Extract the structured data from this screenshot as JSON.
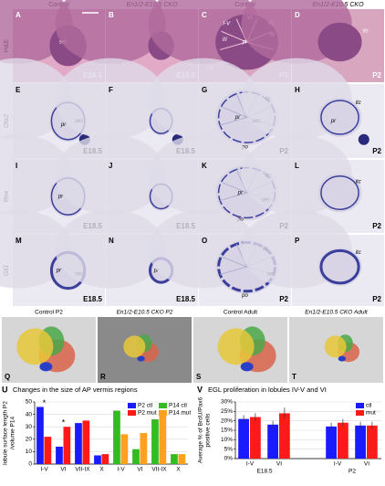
{
  "columns": [
    "Control",
    "En1/2-E10.5 CKO",
    "Control",
    "En1/2-E10.5 CKO"
  ],
  "row_labels": [
    "H&E",
    "Otx2",
    "Rnx",
    "Gli1"
  ],
  "panels": [
    {
      "letter": "A",
      "labels": [
        "sec",
        "E18.5"
      ]
    },
    {
      "letter": "B",
      "labels": [
        "E18.5"
      ]
    },
    {
      "letter": "C",
      "labels": [
        "I-V",
        "VI",
        "VII",
        "III",
        "pr",
        "itc",
        "I-II",
        "P2"
      ]
    },
    {
      "letter": "D",
      "labels": [
        "itc",
        "P2"
      ]
    },
    {
      "letter": "E",
      "labels": [
        "pr",
        "sec",
        "E18.5"
      ]
    },
    {
      "letter": "F",
      "labels": [
        "E18.5"
      ]
    },
    {
      "letter": "G",
      "labels": [
        "itc",
        "pr",
        "sec",
        "po",
        "P2"
      ]
    },
    {
      "letter": "H",
      "labels": [
        "itc",
        "pr",
        "P2"
      ]
    },
    {
      "letter": "I",
      "labels": [
        "pr",
        "E18.5"
      ]
    },
    {
      "letter": "J",
      "labels": [
        "E18.5"
      ]
    },
    {
      "letter": "K",
      "labels": [
        "itc",
        "pr",
        "sec",
        "po",
        "P2"
      ]
    },
    {
      "letter": "L",
      "labels": [
        "itc",
        "P2"
      ]
    },
    {
      "letter": "M",
      "labels": [
        "pr",
        "sec",
        "E18.5"
      ]
    },
    {
      "letter": "N",
      "labels": [
        "pr",
        "E18.5"
      ]
    },
    {
      "letter": "O",
      "labels": [
        "itc",
        "sec",
        "po",
        "P2"
      ]
    },
    {
      "letter": "P",
      "labels": [
        "itc",
        "P2"
      ]
    }
  ],
  "atlas_panels": [
    {
      "letter": "Q",
      "title": "Control P2"
    },
    {
      "letter": "R",
      "title": "En1/2-E10.5 CKO P2"
    },
    {
      "letter": "S",
      "title": "Control Adult"
    },
    {
      "letter": "T",
      "title": "En1/2-E10.5 CKO Adult"
    }
  ],
  "chart_data": [
    {
      "type": "bar",
      "letter": "U",
      "title": "Changes in the size of AP vermis regions",
      "ylabel": [
        "lobule surface length P2",
        "/volume P14"
      ],
      "categories": [
        "I-V",
        "VI",
        "VII-IX",
        "X",
        "I-V",
        "VI",
        "VII-IX",
        "X"
      ],
      "series": [
        {
          "name": "P2 ctl",
          "color": "#1a1aff",
          "values": [
            46,
            14,
            33,
            7,
            null,
            null,
            null,
            null
          ]
        },
        {
          "name": "P2 mut",
          "color": "#ff1a1a",
          "values": [
            22,
            30,
            35,
            8,
            null,
            null,
            null,
            null
          ]
        },
        {
          "name": "P14 ctl",
          "color": "#33bb22",
          "values": [
            null,
            null,
            null,
            null,
            43,
            12,
            36,
            8
          ]
        },
        {
          "name": "P14 mut",
          "color": "#ffa020",
          "values": [
            null,
            null,
            null,
            null,
            24,
            25,
            39,
            8
          ]
        }
      ],
      "ylim": [
        0,
        50
      ],
      "yticks": [
        0,
        10,
        20,
        30,
        40,
        50
      ],
      "annotations": [
        "*",
        "*"
      ]
    },
    {
      "type": "bar",
      "letter": "V",
      "title": "EGL proliferation in lobules IV-V and VI",
      "ylabel": [
        "Average % of BrdU/Pax6",
        "positive cells"
      ],
      "categories": [
        "I-V",
        "VI",
        "I-V",
        "VI"
      ],
      "groups": [
        "E18.5",
        "P2"
      ],
      "series": [
        {
          "name": "ctl",
          "color": "#1a1aff",
          "values": [
            21,
            18,
            17,
            17.5
          ],
          "errors": [
            2,
            2,
            2,
            2
          ]
        },
        {
          "name": "mut",
          "color": "#ff1a1a",
          "values": [
            22,
            24,
            19,
            17.5
          ],
          "errors": [
            2,
            3,
            2,
            2
          ]
        }
      ],
      "ylim": [
        0,
        30
      ],
      "yticks": [
        {
          "value": 0,
          "label": "0%"
        },
        {
          "value": 5,
          "label": "5%"
        },
        {
          "value": 10,
          "label": "10%"
        },
        {
          "value": 15,
          "label": "15%"
        },
        {
          "value": 20,
          "label": "20%"
        },
        {
          "value": 25,
          "label": "25%"
        },
        {
          "value": 30,
          "label": "30%"
        }
      ]
    }
  ]
}
